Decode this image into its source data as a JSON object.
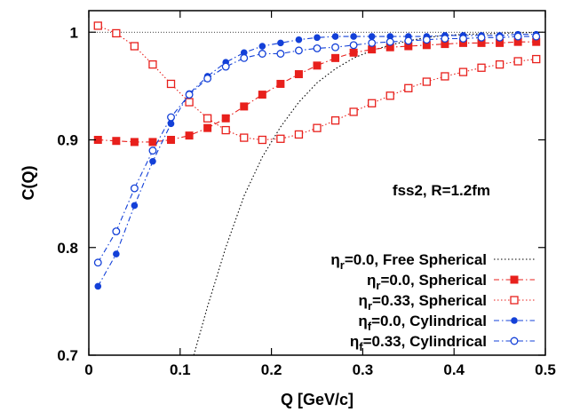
{
  "chart_data": {
    "type": "line",
    "xlabel": "Q [GeV/c]",
    "ylabel": "C(Q)",
    "xlim": [
      0,
      0.5
    ],
    "ylim": [
      0.7,
      1.02
    ],
    "x_ticks": [
      0,
      0.1,
      0.2,
      0.3,
      0.4,
      0.5
    ],
    "y_ticks": [
      0.7,
      0.8,
      0.9,
      1.0
    ],
    "x_tick_labels": [
      "0",
      "0.1",
      "0.2",
      "0.3",
      "0.4",
      "0.5"
    ],
    "y_tick_labels": [
      "0.7",
      "0.8",
      "0.9",
      "1"
    ],
    "grid": false,
    "legend_position": "bottom-right",
    "annotation": "fss2, R=1.2fm",
    "colors": {
      "red": "#e8201c",
      "blue": "#1340d8",
      "black": "#000000"
    },
    "series": [
      {
        "name": "ηr=0.0, Free Spherical",
        "legend_main": "η",
        "legend_sub": "r",
        "legend_rest": "=0.0, Free Spherical",
        "style": "dotted",
        "color": "#000000",
        "marker": "none",
        "x": [
          0.115,
          0.13,
          0.15,
          0.17,
          0.19,
          0.21,
          0.23,
          0.25,
          0.27,
          0.29,
          0.31,
          0.33,
          0.35,
          0.37,
          0.39,
          0.41,
          0.43,
          0.45,
          0.47,
          0.49
        ],
        "y": [
          0.7,
          0.745,
          0.8,
          0.848,
          0.884,
          0.912,
          0.935,
          0.953,
          0.966,
          0.976,
          0.983,
          0.988,
          0.992,
          0.995,
          0.997,
          0.998,
          0.9985,
          0.999,
          0.9995,
          0.9997
        ]
      },
      {
        "name": "ηr=0.0, Spherical",
        "legend_main": "η",
        "legend_sub": "r",
        "legend_rest": "=0.0, Spherical",
        "style": "dashdot",
        "color": "#e8201c",
        "marker": "filled-square",
        "x": [
          0.01,
          0.03,
          0.05,
          0.07,
          0.09,
          0.11,
          0.13,
          0.15,
          0.17,
          0.19,
          0.21,
          0.23,
          0.25,
          0.27,
          0.29,
          0.31,
          0.33,
          0.35,
          0.37,
          0.39,
          0.41,
          0.43,
          0.45,
          0.47,
          0.49
        ],
        "y": [
          0.9,
          0.899,
          0.898,
          0.898,
          0.9,
          0.904,
          0.911,
          0.92,
          0.931,
          0.942,
          0.952,
          0.961,
          0.969,
          0.976,
          0.981,
          0.984,
          0.986,
          0.987,
          0.988,
          0.989,
          0.99,
          0.99,
          0.99,
          0.991,
          0.991
        ]
      },
      {
        "name": "ηr=0.33, Spherical",
        "legend_main": "η",
        "legend_sub": "r",
        "legend_rest": "=0.33, Spherical",
        "style": "dotted",
        "color": "#e8201c",
        "marker": "open-square",
        "x": [
          0.01,
          0.03,
          0.05,
          0.07,
          0.09,
          0.11,
          0.13,
          0.15,
          0.17,
          0.19,
          0.21,
          0.23,
          0.25,
          0.27,
          0.29,
          0.31,
          0.33,
          0.35,
          0.37,
          0.39,
          0.41,
          0.43,
          0.45,
          0.47,
          0.49
        ],
        "y": [
          1.006,
          0.999,
          0.987,
          0.97,
          0.952,
          0.935,
          0.92,
          0.909,
          0.902,
          0.9,
          0.901,
          0.905,
          0.911,
          0.918,
          0.926,
          0.934,
          0.941,
          0.948,
          0.954,
          0.959,
          0.963,
          0.967,
          0.97,
          0.973,
          0.975
        ]
      },
      {
        "name": "ηf=0.0, Cylindrical",
        "legend_main": "η",
        "legend_sub": "f",
        "legend_rest": "=0.0, Cylindrical",
        "style": "dashdot",
        "color": "#1340d8",
        "marker": "filled-circle",
        "x": [
          0.01,
          0.03,
          0.05,
          0.07,
          0.09,
          0.11,
          0.13,
          0.15,
          0.17,
          0.19,
          0.21,
          0.23,
          0.25,
          0.27,
          0.29,
          0.31,
          0.33,
          0.35,
          0.37,
          0.39,
          0.41,
          0.43,
          0.45,
          0.47,
          0.49
        ],
        "y": [
          0.764,
          0.794,
          0.839,
          0.88,
          0.915,
          0.943,
          0.959,
          0.972,
          0.981,
          0.987,
          0.99,
          0.993,
          0.995,
          0.996,
          0.996,
          0.996,
          0.996,
          0.996,
          0.996,
          0.997,
          0.997,
          0.997,
          0.997,
          0.998,
          0.998
        ]
      },
      {
        "name": "ηf=0.33, Cylindrical",
        "legend_main": "η",
        "legend_sub": "f",
        "legend_rest": "=0.33, Cylindrical",
        "style": "dashdot",
        "color": "#1340d8",
        "marker": "open-circle",
        "x": [
          0.01,
          0.03,
          0.05,
          0.07,
          0.09,
          0.11,
          0.13,
          0.15,
          0.17,
          0.19,
          0.21,
          0.23,
          0.25,
          0.27,
          0.29,
          0.31,
          0.33,
          0.35,
          0.37,
          0.39,
          0.41,
          0.43,
          0.45,
          0.47,
          0.49
        ],
        "y": [
          0.786,
          0.815,
          0.855,
          0.89,
          0.921,
          0.942,
          0.957,
          0.968,
          0.976,
          0.98,
          0.98,
          0.983,
          0.985,
          0.986,
          0.988,
          0.99,
          0.991,
          0.992,
          0.993,
          0.994,
          0.994,
          0.995,
          0.995,
          0.996,
          0.996
        ]
      }
    ]
  }
}
